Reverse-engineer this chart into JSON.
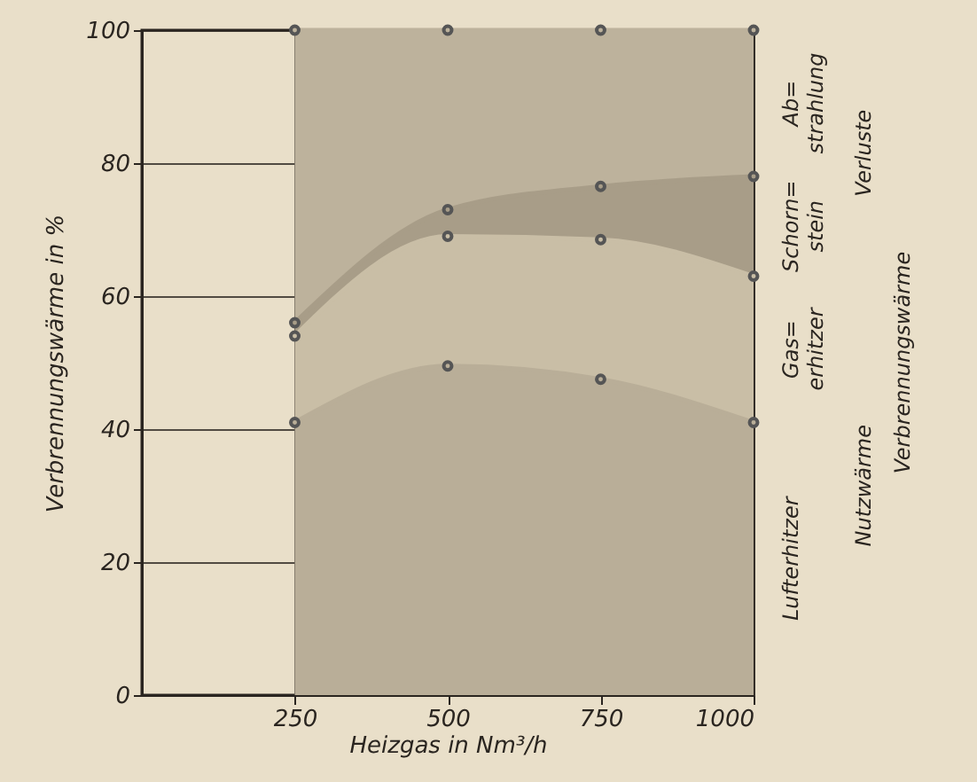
{
  "chart_data": {
    "type": "area",
    "stacked": true,
    "xlabel": "Heizgas in Nm³/h",
    "ylabel": "Verbrennungswärme in %",
    "x": [
      250,
      500,
      750,
      1000
    ],
    "series": [
      {
        "name": "Lufterhitzer",
        "color": "#b9ae98",
        "values": [
          41,
          49.5,
          47.5,
          41
        ]
      },
      {
        "name": "Gas= erhitzer",
        "color": "#c9bea6",
        "values": [
          13,
          19.5,
          21,
          22
        ]
      },
      {
        "name": "Schorn= stein",
        "color": "#a89d88",
        "values": [
          2,
          4,
          8,
          15
        ]
      },
      {
        "name": "Ab= strahlung",
        "color": "#bdb29c",
        "values": [
          44,
          27,
          23.5,
          22
        ]
      }
    ],
    "annotations": [
      "Verluste",
      "Nutzwärme",
      "Verbrennungswärme"
    ],
    "xlim": [
      0,
      1000
    ],
    "xticks": [
      250,
      500,
      750,
      1000
    ],
    "ylim": [
      0,
      100
    ],
    "yticks": [
      0,
      20,
      40,
      60,
      80,
      100
    ],
    "grid": true,
    "legend": false,
    "marker": "circle"
  }
}
